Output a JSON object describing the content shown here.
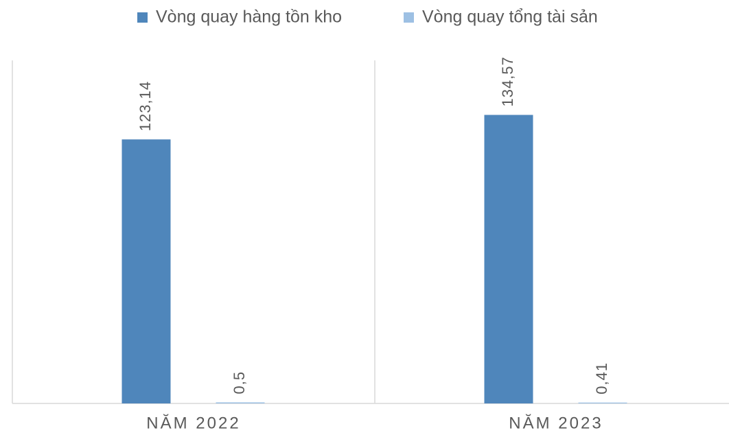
{
  "chart_data": {
    "type": "bar",
    "categories": [
      "NĂM 2022",
      "NĂM 2023"
    ],
    "series": [
      {
        "name": "Vòng quay hàng tồn kho",
        "color": "#4f86bb",
        "values": [
          123.14,
          134.57
        ],
        "value_labels": [
          "123,14",
          "134,57"
        ]
      },
      {
        "name": "Vòng quay tổng tài sản",
        "color": "#9dc0e3",
        "values": [
          0.5,
          0.41
        ],
        "value_labels": [
          "0,5",
          "0,41"
        ]
      }
    ],
    "ylim": [
      0,
      160
    ],
    "legend": "top"
  }
}
